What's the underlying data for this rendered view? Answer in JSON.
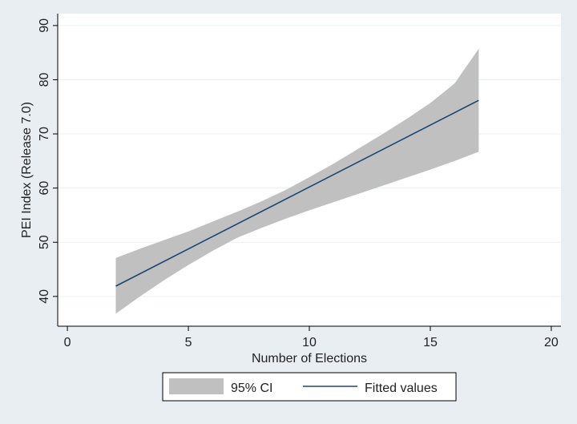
{
  "chart_data": {
    "type": "line",
    "title": "",
    "xlabel": "Number of Elections",
    "ylabel": "PEI Index (Release 7.0)",
    "xlim": [
      -0.4,
      20.4
    ],
    "ylim": [
      34.5,
      92.2
    ],
    "x_ticks": [
      0,
      5,
      10,
      15,
      20
    ],
    "y_ticks": [
      40,
      50,
      60,
      70,
      80,
      90
    ],
    "grid": "horizontal",
    "legend_position": "bottom",
    "series": [
      {
        "name": "95% CI",
        "kind": "band",
        "color": "#c0c0c0",
        "x": [
          2,
          3,
          4,
          5,
          6,
          7,
          8,
          9,
          10,
          11,
          12,
          13,
          14,
          15,
          16,
          17
        ],
        "lower": [
          36.8,
          40.0,
          43.0,
          45.8,
          48.4,
          50.8,
          52.6,
          54.3,
          55.9,
          57.4,
          58.9,
          60.4,
          61.9,
          63.4,
          65.0,
          66.7
        ],
        "upper": [
          47.1,
          48.8,
          50.4,
          52.0,
          53.8,
          55.6,
          57.5,
          59.6,
          62.0,
          64.5,
          67.2,
          69.9,
          72.7,
          75.7,
          79.3,
          85.7
        ]
      },
      {
        "name": "Fitted values",
        "kind": "line",
        "color": "#1a476f",
        "x": [
          2,
          17
        ],
        "y": [
          41.9,
          76.2
        ]
      }
    ]
  }
}
